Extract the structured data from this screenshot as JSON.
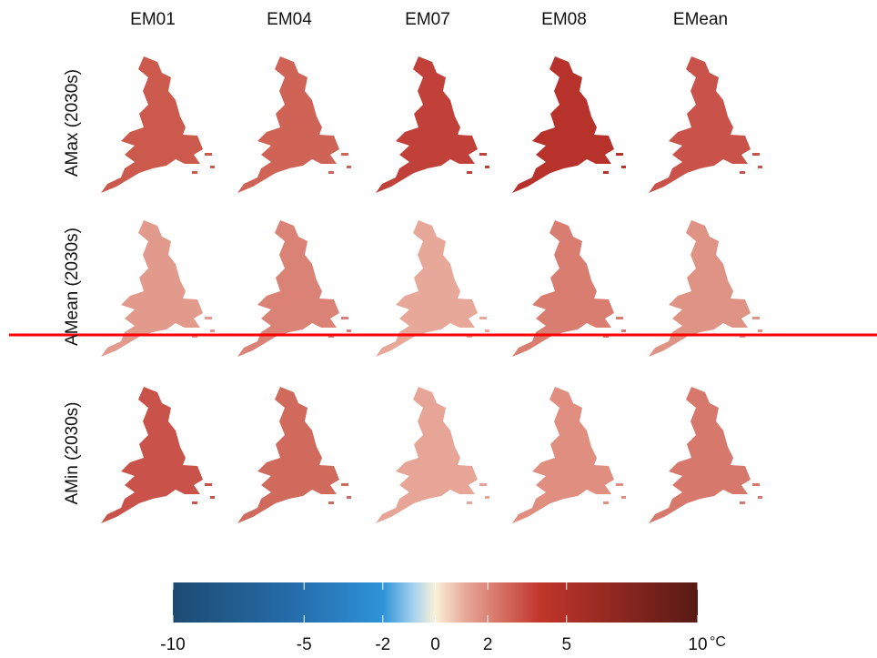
{
  "columns": [
    "EM01",
    "EM04",
    "EM07",
    "EM08",
    "EMean"
  ],
  "rows": [
    {
      "label": "AMax (2030s)",
      "colors": [
        "#cc5a4c",
        "#cf6456",
        "#c2403a",
        "#b8322c",
        "#c9524a"
      ]
    },
    {
      "label": "AMean (2030s)",
      "colors": [
        "#e29a8c",
        "#da8275",
        "#e8a899",
        "#d97d70",
        "#df9385"
      ]
    },
    {
      "label": "AMin (2030s)",
      "colors": [
        "#c9534a",
        "#d06a5d",
        "#e7a597",
        "#df8e80",
        "#d6786b"
      ]
    }
  ],
  "colorbar": {
    "lim": [
      -10,
      10
    ],
    "ticks": [
      -10,
      -5,
      -2,
      0,
      2,
      5,
      10
    ],
    "unit": "°C"
  }
}
